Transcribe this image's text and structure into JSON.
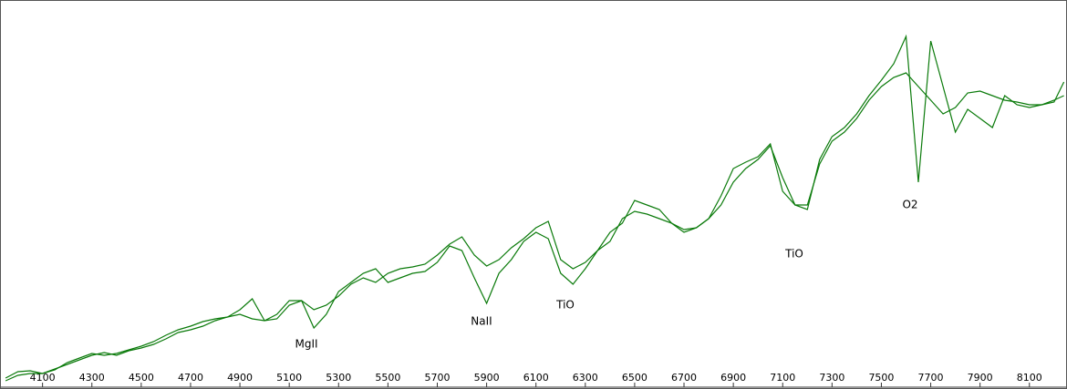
{
  "chart_data": {
    "type": "line",
    "x": [
      3950,
      4000,
      4050,
      4100,
      4150,
      4200,
      4250,
      4300,
      4350,
      4400,
      4450,
      4500,
      4550,
      4600,
      4650,
      4700,
      4750,
      4800,
      4850,
      4900,
      4950,
      5000,
      5050,
      5100,
      5150,
      5200,
      5250,
      5300,
      5350,
      5400,
      5450,
      5500,
      5550,
      5600,
      5650,
      5700,
      5750,
      5800,
      5850,
      5900,
      5950,
      6000,
      6050,
      6100,
      6150,
      6200,
      6250,
      6300,
      6350,
      6400,
      6450,
      6500,
      6550,
      6600,
      6650,
      6700,
      6750,
      6800,
      6850,
      6900,
      6950,
      7000,
      7050,
      7100,
      7150,
      7200,
      7250,
      7300,
      7350,
      7400,
      7450,
      7500,
      7550,
      7600,
      7650,
      7700,
      7750,
      7800,
      7850,
      7900,
      7950,
      8000,
      8050,
      8100,
      8150,
      8200,
      8240
    ],
    "series": [
      {
        "color": "#0a7a0a",
        "values": [
          4,
          10,
          12,
          12,
          17,
          22,
          27,
          32,
          35,
          32,
          37,
          40,
          44,
          50,
          57,
          60,
          64,
          70,
          74,
          82,
          94,
          70,
          72,
          87,
          92,
          62,
          77,
          102,
          112,
          122,
          127,
          112,
          117,
          122,
          124,
          134,
          152,
          147,
          117,
          89,
          122,
          137,
          157,
          167,
          160,
          122,
          110,
          127,
          147,
          167,
          177,
          202,
          197,
          192,
          177,
          167,
          172,
          182,
          197,
          222,
          237,
          247,
          262,
          227,
          197,
          192,
          247,
          272,
          282,
          297,
          317,
          334,
          352,
          382,
          222,
          377,
          327,
          277,
          302,
          292,
          282,
          317,
          307,
          304,
          307,
          310,
          332
        ]
      },
      {
        "color": "#0a7a0a",
        "values": [
          7,
          14,
          15,
          12,
          16,
          24,
          29,
          34,
          32,
          34,
          38,
          42,
          47,
          54,
          60,
          64,
          69,
          72,
          74,
          77,
          72,
          70,
          77,
          92,
          92,
          82,
          87,
          97,
          110,
          117,
          112,
          122,
          127,
          129,
          132,
          142,
          154,
          162,
          142,
          130,
          137,
          150,
          160,
          172,
          179,
          137,
          127,
          134,
          147,
          157,
          182,
          190,
          187,
          182,
          177,
          170,
          172,
          182,
          207,
          237,
          244,
          250,
          264,
          212,
          197,
          197,
          242,
          267,
          277,
          292,
          312,
          327,
          337,
          342,
          327,
          312,
          297,
          304,
          320,
          322,
          317,
          312,
          310,
          307,
          307,
          312,
          317
        ]
      }
    ],
    "xlim": [
      3935,
      8245
    ],
    "xticks": [
      4100,
      4300,
      4500,
      4700,
      4900,
      5100,
      5300,
      5500,
      5700,
      5900,
      6100,
      6300,
      6500,
      6700,
      6900,
      7100,
      7300,
      7500,
      7700,
      7900,
      8100
    ],
    "ylim": [
      0,
      420
    ],
    "annotations": [
      "MgII",
      "NaII",
      "TiO",
      "TiO",
      "O2"
    ]
  }
}
